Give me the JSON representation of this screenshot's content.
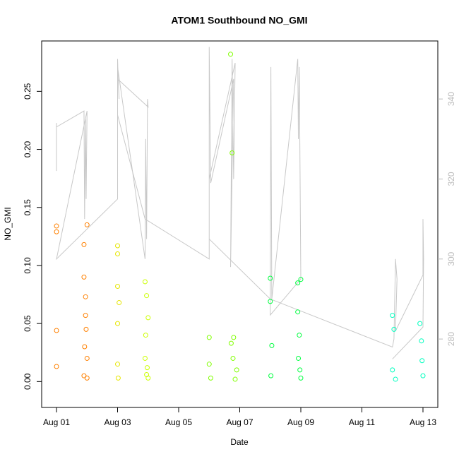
{
  "chart_data": {
    "type": "scatter",
    "title": "ATOM1 Southbound NO_GMI",
    "xlabel": "Date",
    "ylabel": "NO_GMI",
    "xlim": [
      0.514,
      13.486
    ],
    "ylim": [
      -0.0223,
      0.2934
    ],
    "y2lim": [
      262.9,
      354.5
    ],
    "xticks": [
      {
        "value": 1,
        "label": "Aug 01"
      },
      {
        "value": 3,
        "label": "Aug 03"
      },
      {
        "value": 5,
        "label": "Aug 05"
      },
      {
        "value": 7,
        "label": "Aug 07"
      },
      {
        "value": 9,
        "label": "Aug 09"
      },
      {
        "value": 11,
        "label": "Aug 11"
      },
      {
        "value": 13,
        "label": "Aug 13"
      }
    ],
    "yticks": [
      {
        "value": 0,
        "label": "0.00"
      },
      {
        "value": 0.05,
        "label": "0.05"
      },
      {
        "value": 0.1,
        "label": "0.10"
      },
      {
        "value": 0.15,
        "label": "0.15"
      },
      {
        "value": 0.2,
        "label": "0.20"
      },
      {
        "value": 0.25,
        "label": "0.25"
      }
    ],
    "y2ticks": [
      280,
      300,
      320,
      340
    ],
    "series": [
      {
        "type": "line",
        "axis": "y2",
        "color": "#c8c8c8",
        "x": [
          1.0,
          1.0,
          1.0,
          1.9,
          1.92,
          1.95,
          1.97,
          2.0,
          1.0,
          3.0,
          3.0,
          3.02,
          3.05,
          3.0,
          3.9,
          3.92,
          3.95,
          3.98,
          4.0,
          3.0,
          3.0,
          3.9,
          6.0,
          6.0,
          6.05,
          6.8,
          6.7,
          6.75,
          6.8,
          6.85,
          6.0,
          6.0,
          8.0,
          8.02,
          8.05,
          8.9,
          8.92,
          8.95,
          9.0,
          8.0,
          8.0,
          12.0,
          12.05,
          12.1,
          12.15,
          12.1,
          13.0,
          13.0,
          13.02,
          13.0,
          12.0
        ],
        "values": [
          322,
          334,
          333,
          337,
          310,
          335,
          315,
          337,
          300,
          315,
          350,
          345,
          340,
          348,
          300,
          330,
          305,
          340,
          338,
          345,
          336,
          310,
          300,
          353,
          319,
          345,
          298,
          350,
          320,
          349,
          320,
          305,
          290,
          348,
          290,
          350,
          330,
          348,
          295,
          286,
          290,
          278,
          280,
          300,
          295,
          282,
          296,
          310,
          300,
          283,
          275
        ]
      },
      {
        "type": "scatter",
        "color": "#FF8000",
        "x": [
          1,
          1,
          1,
          1,
          1.9,
          1.9,
          1.9,
          1.95,
          1.95,
          2.0,
          2.0,
          2.0,
          1.92,
          1.97
        ],
        "values": [
          0.134,
          0.129,
          0.044,
          0.013,
          0.005,
          0.118,
          0.09,
          0.073,
          0.057,
          0.135,
          0.02,
          0.003,
          0.03,
          0.045
        ]
      },
      {
        "type": "scatter",
        "color": "#E6E600",
        "x": [
          3,
          3,
          3,
          3,
          3,
          3.02,
          3.05
        ],
        "values": [
          0.117,
          0.11,
          0.082,
          0.05,
          0.015,
          0.003,
          0.068
        ]
      },
      {
        "type": "scatter",
        "color": "#CCFF00",
        "x": [
          3.9,
          3.9,
          3.95,
          3.95,
          4.0,
          4.0,
          3.92,
          3.97
        ],
        "values": [
          0.086,
          0.02,
          0.074,
          0.006,
          0.055,
          0.003,
          0.04,
          0.012
        ]
      },
      {
        "type": "scatter",
        "color": "#80FF00",
        "x": [
          6,
          6,
          6.05,
          6.7,
          6.75,
          6.8,
          6.9,
          6.85,
          6.72,
          6.78
        ],
        "values": [
          0.038,
          0.015,
          0.003,
          0.282,
          0.197,
          0.038,
          0.01,
          0.002,
          0.033,
          0.02
        ]
      },
      {
        "type": "scatter",
        "color": "#00FF40",
        "x": [
          8,
          8,
          8.05,
          8.02,
          8.9,
          8.9,
          8.95,
          9.0,
          9.0,
          8.92,
          8.97
        ],
        "values": [
          0.089,
          0.069,
          0.031,
          0.005,
          0.085,
          0.06,
          0.04,
          0.088,
          0.003,
          0.02,
          0.01
        ]
      },
      {
        "type": "scatter",
        "color": "#00FFBF",
        "x": [
          12,
          12.05,
          12.1,
          12.0,
          12.9,
          12.95,
          13.0,
          12.97
        ],
        "values": [
          0.057,
          0.045,
          0.002,
          0.01,
          0.05,
          0.035,
          0.005,
          0.018
        ]
      }
    ]
  }
}
